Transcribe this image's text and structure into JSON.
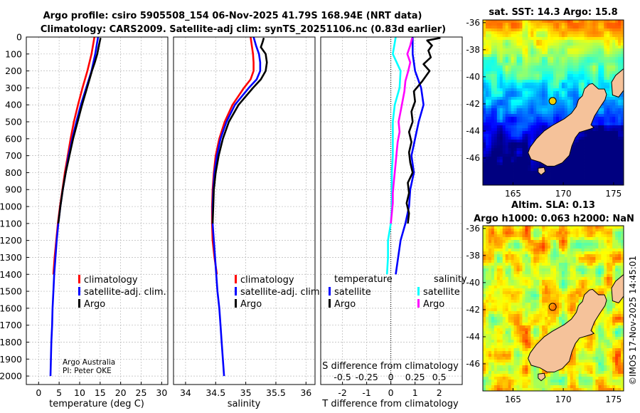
{
  "title_line1": "Argo profile: csiro 5905508_154 06-Nov-2025 41.79S 168.94E (NRT data)",
  "title_line2": "Climatology: CARS2009. Satellite-adj clim: synTS_20251106.nc (0.83d earlier)",
  "credit_line1": "Argo Australia",
  "credit_line2": "PI: Peter OKE",
  "watermark": "©IMOS 17-Nov-2025 14:45:01",
  "colors": {
    "clim": "#ff0000",
    "sat": "#0000ff",
    "argo": "#000000",
    "sat_s": "#00ffff",
    "argo_s": "#ff00ff"
  },
  "chart_data": [
    {
      "type": "line",
      "id": "temperature",
      "xlabel": "temperature (deg C)",
      "xlim": [
        -3,
        31.5
      ],
      "ylim": [
        2050,
        0
      ],
      "xticks": [
        0,
        5,
        10,
        15,
        20,
        25,
        30
      ],
      "yticks": [
        0,
        100,
        200,
        300,
        400,
        500,
        600,
        700,
        800,
        900,
        1000,
        1100,
        1200,
        1300,
        1400,
        1500,
        1600,
        1700,
        1800,
        1900,
        2000
      ],
      "legend": [
        "climatology",
        "satellite-adj. clim.",
        "Argo"
      ],
      "series": [
        {
          "name": "climatology",
          "color": "#ff0000",
          "depth": [
            0,
            100,
            200,
            300,
            400,
            500,
            600,
            700,
            800,
            900,
            1000,
            1100,
            1200,
            1300,
            1400
          ],
          "x": [
            13.6,
            12.9,
            11.9,
            10.7,
            9.6,
            8.6,
            7.8,
            7.1,
            6.4,
            5.8,
            5.2,
            4.7,
            4.3,
            3.9,
            3.6
          ]
        },
        {
          "name": "satellite-adj. clim.",
          "color": "#0000ff",
          "depth": [
            0,
            100,
            200,
            300,
            400,
            500,
            600,
            700,
            800,
            900,
            1000,
            1100,
            1200,
            1300,
            1400,
            1500,
            1600,
            1700,
            1800,
            1900,
            2000
          ],
          "x": [
            14.5,
            13.8,
            12.9,
            11.6,
            10.3,
            9.2,
            8.2,
            7.3,
            6.6,
            5.9,
            5.3,
            4.8,
            4.4,
            4.1,
            3.8,
            3.6,
            3.4,
            3.3,
            3.1,
            3.0,
            2.9
          ]
        },
        {
          "name": "Argo",
          "color": "#000000",
          "depth": [
            5,
            50,
            100,
            150,
            200,
            300,
            400,
            500,
            600,
            700,
            800,
            900,
            1000,
            1100
          ],
          "x": [
            15.1,
            14.7,
            14.3,
            13.7,
            13.0,
            11.8,
            10.6,
            9.5,
            8.4,
            7.5,
            6.6,
            5.9,
            5.3,
            4.8
          ]
        }
      ]
    },
    {
      "type": "line",
      "id": "salinity",
      "xlabel": "salinity",
      "xlim": [
        33.8,
        36.15
      ],
      "ylim": [
        2050,
        0
      ],
      "xticks": [
        34,
        34.5,
        35,
        35.5,
        36
      ],
      "tick_labels": [
        "34",
        "34.5",
        "35",
        "35.5",
        "36"
      ],
      "legend": [
        "climatology",
        "satellite-adj. clim.",
        "Argo"
      ],
      "series": [
        {
          "name": "climatology",
          "color": "#ff0000",
          "depth": [
            0,
            50,
            100,
            150,
            200,
            250,
            300,
            400,
            500,
            600,
            700,
            800,
            900,
            1000,
            1100,
            1200,
            1300,
            1400
          ],
          "x": [
            35.08,
            35.1,
            35.12,
            35.13,
            35.13,
            35.08,
            34.97,
            34.78,
            34.65,
            34.56,
            34.5,
            34.47,
            34.45,
            34.44,
            34.44,
            34.45,
            34.48,
            34.52
          ]
        },
        {
          "name": "satellite-adj. clim.",
          "color": "#0000ff",
          "depth": [
            0,
            50,
            100,
            150,
            200,
            250,
            300,
            400,
            500,
            600,
            700,
            800,
            900,
            1000,
            1100,
            1200,
            1300,
            1400,
            1500,
            1600,
            1700,
            1800,
            1900,
            2000
          ],
          "x": [
            35.13,
            35.17,
            35.22,
            35.24,
            35.24,
            35.18,
            35.05,
            34.82,
            34.68,
            34.58,
            34.52,
            34.48,
            34.46,
            34.45,
            34.45,
            34.47,
            34.49,
            34.51,
            34.53,
            34.56,
            34.58,
            34.6,
            34.62,
            34.64
          ]
        },
        {
          "name": "Argo",
          "color": "#000000",
          "depth": [
            5,
            30,
            60,
            100,
            150,
            200,
            250,
            300,
            400,
            500,
            600,
            700,
            800,
            900,
            1000,
            1100
          ],
          "x": [
            35.3,
            35.28,
            35.25,
            35.33,
            35.35,
            35.33,
            35.25,
            35.12,
            34.88,
            34.72,
            34.62,
            34.55,
            34.5,
            34.47,
            34.46,
            34.45
          ]
        }
      ]
    },
    {
      "type": "line",
      "id": "difference",
      "xlabel": "T difference from climatology",
      "xlabel_top": "S difference from climatology",
      "xlim": [
        -2.9,
        2.95
      ],
      "ylim": [
        2050,
        0
      ],
      "xticks": [
        -2,
        -1,
        0,
        1,
        2
      ],
      "tick_labels": [
        "-2",
        "-1",
        "0",
        "1",
        "2"
      ],
      "s_ticks": [
        -0.5,
        -0.25,
        0,
        0.25,
        0.5
      ],
      "s_tick_labels": [
        "-0.5",
        "-0.25",
        "0",
        "0.25",
        "0.5"
      ],
      "legend": {
        "temperature_header": "temperature",
        "salinity_header": "salinity",
        "entries": [
          "satellite",
          "Argo"
        ]
      },
      "series": [
        {
          "name": "T satellite",
          "color": "#0000ff",
          "depth": [
            0,
            100,
            200,
            300,
            400,
            500,
            600,
            700,
            800,
            900,
            1000,
            1100,
            1200,
            1300,
            1400
          ],
          "x": [
            0.9,
            0.9,
            1.0,
            1.25,
            1.35,
            1.15,
            1.0,
            0.85,
            0.95,
            0.8,
            0.75,
            0.6,
            0.4,
            0.3,
            0.2
          ]
        },
        {
          "name": "T Argo",
          "color": "#000000",
          "depth": [
            5,
            20,
            50,
            80,
            120,
            160,
            200,
            260,
            320,
            380,
            440,
            500,
            560,
            620,
            680,
            740,
            800,
            860,
            920,
            980,
            1040,
            1100
          ],
          "x": [
            2.05,
            1.5,
            1.7,
            1.55,
            1.65,
            1.35,
            1.6,
            1.3,
            0.95,
            1.0,
            0.85,
            0.9,
            0.75,
            0.85,
            0.75,
            0.8,
            0.9,
            0.7,
            0.75,
            0.65,
            0.75,
            0.7
          ]
        },
        {
          "name": "S satellite",
          "color": "#00ffff",
          "depth": [
            0,
            100,
            200,
            300,
            400,
            500,
            600,
            700,
            800,
            900,
            1000,
            1100,
            1200,
            1300,
            1400
          ],
          "x": [
            0.05,
            0.02,
            0.1,
            0.09,
            0.04,
            0.02,
            0.02,
            0.02,
            0.01,
            0.01,
            0.01,
            0.0,
            -0.03,
            -0.03,
            -0.04
          ]
        },
        {
          "name": "S Argo",
          "color": "#ff00ff",
          "depth": [
            5,
            50,
            100,
            150,
            200,
            260,
            320,
            380,
            440,
            500,
            560,
            620,
            680,
            740,
            800,
            860,
            920,
            980,
            1040,
            1100
          ],
          "x": [
            0.22,
            0.2,
            0.17,
            0.2,
            0.18,
            0.15,
            0.14,
            0.12,
            0.1,
            0.08,
            0.09,
            0.07,
            0.06,
            0.05,
            0.04,
            0.03,
            0.02,
            0.02,
            0.01,
            0.0
          ]
        }
      ]
    },
    {
      "type": "heatmap",
      "id": "sst_map",
      "title": "sat. SST: 14.3 Argo: 15.8",
      "x_range": [
        162,
        176
      ],
      "y_range": [
        -48,
        -35.8
      ],
      "xticks": [
        165,
        170,
        175
      ],
      "yticks": [
        -36,
        -38,
        -40,
        -42,
        -44,
        -46
      ],
      "argo_point": {
        "lon": 168.94,
        "lat": -41.79
      }
    },
    {
      "type": "heatmap",
      "id": "sla_map",
      "title_line1": "Altim. SLA: 0.13",
      "title_line2": "Argo h1000: 0.063 h2000: NaN",
      "x_range": [
        162,
        176
      ],
      "y_range": [
        -48,
        -35.8
      ],
      "xticks": [
        165,
        170,
        175
      ],
      "yticks": [
        -36,
        -38,
        -40,
        -42,
        -44,
        -46
      ],
      "argo_point": {
        "lon": 168.94,
        "lat": -41.79
      }
    }
  ]
}
